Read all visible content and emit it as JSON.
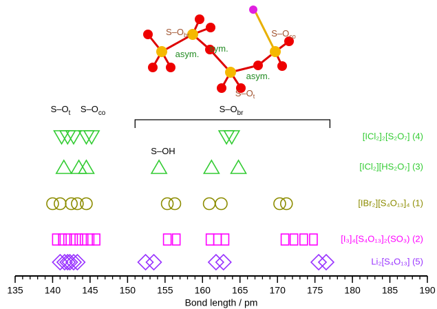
{
  "chart_data": {
    "type": "strip",
    "x_label": "Bond length / pm",
    "xlim": [
      135,
      190
    ],
    "xticks": [
      135,
      140,
      145,
      150,
      155,
      160,
      165,
      170,
      175,
      180,
      185,
      190
    ],
    "annotations": [
      {
        "text": "S–O",
        "sub": "t"
      },
      {
        "text": "S–O",
        "sub": "co"
      },
      {
        "text": "S–O",
        "sub": "br"
      },
      {
        "text": "S–OH"
      }
    ],
    "figure_labels": [
      {
        "text": "S–O",
        "sub": "br"
      },
      {
        "text": "asym."
      },
      {
        "text": "sym."
      },
      {
        "text": "asym."
      },
      {
        "text": "S–O",
        "sub": "t"
      },
      {
        "text": "S–O",
        "sub": "co"
      }
    ],
    "series": [
      {
        "name": "[ICl₂]₂[S₂O₇] (4)",
        "color": "#33cc33",
        "marker": "triangle-down",
        "values": [
          141.2,
          142.0,
          142.8,
          144.5,
          145.2,
          163.2,
          163.9
        ]
      },
      {
        "name": "[ICl₂][HS₂O₇] (3)",
        "color": "#33cc33",
        "marker": "triangle-up",
        "values": [
          141.5,
          143.5,
          144.5,
          154.2,
          161.2,
          164.8
        ]
      },
      {
        "name": "[IBr₂][S₄O₁₃]₄ (1)",
        "color": "#8c8c00",
        "marker": "circle",
        "values": [
          140.0,
          141.0,
          142.5,
          143.3,
          144.5,
          155.3,
          156.3,
          160.9,
          162.5,
          170.3,
          171.2
        ]
      },
      {
        "name": "[I₃]₄[S₄O₁₃]₂(SO₃) (2)",
        "color": "#ff00ff",
        "marker": "square",
        "values": [
          140.5,
          141.3,
          142.0,
          142.8,
          143.5,
          144.2,
          145.0,
          145.8,
          155.3,
          156.5,
          161.0,
          162.0,
          163.0,
          171.0,
          172.2,
          173.5,
          174.8
        ]
      },
      {
        "name": "Li₂[S₄O₁₃] (5)",
        "color": "#9933ff",
        "marker": "diamond",
        "values": [
          141.0,
          141.6,
          142.0,
          142.3,
          142.8,
          143.3,
          152.4,
          153.5,
          161.8,
          162.8,
          175.5,
          176.5
        ]
      }
    ]
  }
}
